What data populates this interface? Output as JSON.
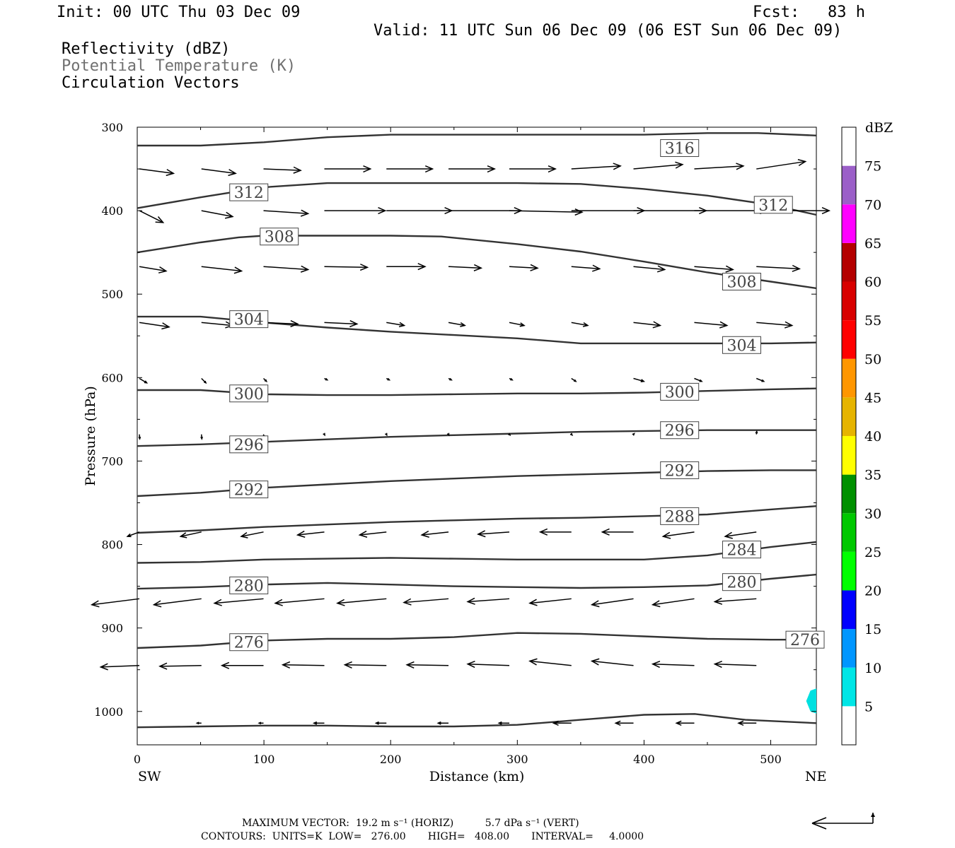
{
  "header": {
    "init": "Init: 00 UTC Thu 03 Dec 09",
    "fcst": "Fcst:   83 h",
    "valid": "Valid: 11 UTC Sun 06 Dec 09 (06 EST Sun 06 Dec 09)",
    "field1": "Reflectivity (dBZ)",
    "field2": "Potential Temperature (K)",
    "field3": "Circulation Vectors"
  },
  "footer": {
    "line1": "MAXIMUM VECTOR:  19.2 m s⁻¹ (HORIZ)          5.7 dPa s⁻¹ (VERT)",
    "line2": "CONTOURS:  UNITS=K  LOW=   276.00       HIGH=   408.00       INTERVAL=     4.0000"
  },
  "colors": {
    "contour": "#333333",
    "vector": "#000000",
    "refl_patch": "#00e0e0",
    "field2_text": "#707070"
  },
  "chart_data": {
    "type": "cross-section",
    "xlabel": "Distance (km)",
    "ylabel": "Pressure (hPa)",
    "xlim": [
      0,
      536
    ],
    "ylim": [
      1040,
      300
    ],
    "x_ticks": [
      0,
      100,
      200,
      300,
      400,
      500
    ],
    "y_ticks": [
      300,
      400,
      500,
      600,
      700,
      800,
      900,
      1000
    ],
    "left_end_label": "SW",
    "right_end_label": "NE",
    "colorbar": {
      "unit": "dBZ",
      "levels": [
        5,
        10,
        15,
        20,
        25,
        30,
        35,
        40,
        45,
        50,
        55,
        60,
        65,
        70,
        75
      ],
      "colors": [
        "#ffffff",
        "#00e6e6",
        "#0096ff",
        "#0000ff",
        "#00ff00",
        "#00c800",
        "#009000",
        "#ffff00",
        "#e6b400",
        "#ff9600",
        "#ff0000",
        "#d80000",
        "#b40000",
        "#ff00ff",
        "#9b5fc8",
        "#ffffff"
      ]
    },
    "reflectivity_patch": {
      "dbz": "5-10",
      "x": [
        528,
        536
      ],
      "p": [
        975,
        1000
      ]
    },
    "theta_contours": [
      {
        "value": 316,
        "points": [
          [
            0,
            322
          ],
          [
            50,
            322
          ],
          [
            100,
            318
          ],
          [
            150,
            312
          ],
          [
            200,
            309
          ],
          [
            250,
            309
          ],
          [
            300,
            309
          ],
          [
            350,
            309
          ],
          [
            400,
            309
          ],
          [
            450,
            307
          ],
          [
            490,
            307
          ],
          [
            536,
            310
          ]
        ]
      },
      {
        "value": 312,
        "points": [
          [
            0,
            397
          ],
          [
            50,
            384
          ],
          [
            100,
            372
          ],
          [
            150,
            367
          ],
          [
            200,
            367
          ],
          [
            250,
            367
          ],
          [
            300,
            367
          ],
          [
            350,
            368
          ],
          [
            400,
            374
          ],
          [
            450,
            382
          ],
          [
            500,
            393
          ],
          [
            536,
            405
          ]
        ]
      },
      {
        "value": 308,
        "points": [
          [
            0,
            450
          ],
          [
            50,
            438
          ],
          [
            80,
            432
          ],
          [
            100,
            430
          ],
          [
            150,
            430
          ],
          [
            200,
            430
          ],
          [
            240,
            431
          ],
          [
            300,
            440
          ],
          [
            350,
            449
          ],
          [
            400,
            461
          ],
          [
            450,
            474
          ],
          [
            500,
            485
          ],
          [
            536,
            493
          ]
        ]
      },
      {
        "value": 304,
        "points": [
          [
            0,
            527
          ],
          [
            50,
            527
          ],
          [
            100,
            534
          ],
          [
            150,
            540
          ],
          [
            200,
            545
          ],
          [
            250,
            549
          ],
          [
            300,
            553
          ],
          [
            350,
            559
          ],
          [
            400,
            559
          ],
          [
            450,
            559
          ],
          [
            500,
            559
          ],
          [
            536,
            558
          ]
        ]
      },
      {
        "value": 300,
        "points": [
          [
            0,
            615
          ],
          [
            50,
            615
          ],
          [
            100,
            620
          ],
          [
            150,
            621
          ],
          [
            200,
            621
          ],
          [
            250,
            620
          ],
          [
            300,
            619
          ],
          [
            350,
            619
          ],
          [
            400,
            618
          ],
          [
            450,
            616
          ],
          [
            500,
            614
          ],
          [
            536,
            613
          ]
        ]
      },
      {
        "value": 296,
        "points": [
          [
            0,
            682
          ],
          [
            50,
            680
          ],
          [
            100,
            677
          ],
          [
            150,
            674
          ],
          [
            200,
            671
          ],
          [
            250,
            669
          ],
          [
            300,
            667
          ],
          [
            350,
            665
          ],
          [
            400,
            664
          ],
          [
            450,
            663
          ],
          [
            500,
            663
          ],
          [
            536,
            663
          ]
        ]
      },
      {
        "value": 292,
        "points": [
          [
            0,
            742
          ],
          [
            50,
            738
          ],
          [
            100,
            732
          ],
          [
            150,
            728
          ],
          [
            200,
            724
          ],
          [
            250,
            721
          ],
          [
            300,
            718
          ],
          [
            350,
            716
          ],
          [
            400,
            714
          ],
          [
            450,
            712
          ],
          [
            500,
            711
          ],
          [
            536,
            711
          ]
        ]
      },
      {
        "value": 288,
        "points": [
          [
            0,
            786
          ],
          [
            50,
            783
          ],
          [
            100,
            779
          ],
          [
            150,
            776
          ],
          [
            200,
            773
          ],
          [
            250,
            771
          ],
          [
            300,
            769
          ],
          [
            350,
            768
          ],
          [
            400,
            766
          ],
          [
            450,
            764
          ],
          [
            500,
            758
          ],
          [
            536,
            754
          ]
        ]
      },
      {
        "value": 284,
        "points": [
          [
            0,
            822
          ],
          [
            50,
            821
          ],
          [
            100,
            818
          ],
          [
            150,
            817
          ],
          [
            200,
            816
          ],
          [
            250,
            817
          ],
          [
            300,
            818
          ],
          [
            350,
            818
          ],
          [
            400,
            818
          ],
          [
            450,
            813
          ],
          [
            500,
            803
          ],
          [
            536,
            797
          ]
        ]
      },
      {
        "value": 280,
        "points": [
          [
            0,
            853
          ],
          [
            50,
            851
          ],
          [
            100,
            848
          ],
          [
            150,
            846
          ],
          [
            200,
            848
          ],
          [
            250,
            850
          ],
          [
            300,
            851
          ],
          [
            350,
            852
          ],
          [
            400,
            851
          ],
          [
            450,
            849
          ],
          [
            500,
            841
          ],
          [
            536,
            836
          ]
        ]
      },
      {
        "value": 276,
        "points": [
          [
            0,
            924
          ],
          [
            50,
            921
          ],
          [
            100,
            915
          ],
          [
            150,
            913
          ],
          [
            200,
            913
          ],
          [
            250,
            911
          ],
          [
            300,
            906
          ],
          [
            350,
            907
          ],
          [
            400,
            910
          ],
          [
            450,
            913
          ],
          [
            500,
            914
          ],
          [
            536,
            914
          ]
        ]
      },
      {
        "value": null,
        "points": [
          [
            0,
            1019
          ],
          [
            50,
            1018
          ],
          [
            100,
            1017
          ],
          [
            150,
            1017
          ],
          [
            200,
            1018
          ],
          [
            250,
            1018
          ],
          [
            300,
            1016
          ],
          [
            350,
            1010
          ],
          [
            400,
            1004
          ],
          [
            440,
            1003
          ],
          [
            480,
            1010
          ],
          [
            536,
            1014
          ]
        ]
      }
    ],
    "contour_labels": [
      {
        "text": "316",
        "x": 413,
        "p": 325
      },
      {
        "text": "312",
        "x": 73,
        "p": 378
      },
      {
        "text": "312",
        "x": 487,
        "p": 393
      },
      {
        "text": "308",
        "x": 97,
        "p": 431
      },
      {
        "text": "308",
        "x": 462,
        "p": 485
      },
      {
        "text": "304",
        "x": 73,
        "p": 530
      },
      {
        "text": "304",
        "x": 462,
        "p": 561
      },
      {
        "text": "300",
        "x": 73,
        "p": 619
      },
      {
        "text": "300",
        "x": 413,
        "p": 617
      },
      {
        "text": "296",
        "x": 73,
        "p": 680
      },
      {
        "text": "296",
        "x": 413,
        "p": 663
      },
      {
        "text": "292",
        "x": 73,
        "p": 734
      },
      {
        "text": "292",
        "x": 413,
        "p": 711
      },
      {
        "text": "288",
        "x": 413,
        "p": 766
      },
      {
        "text": "284",
        "x": 462,
        "p": 806
      },
      {
        "text": "280",
        "x": 73,
        "p": 849
      },
      {
        "text": "280",
        "x": 462,
        "p": 845
      },
      {
        "text": "276",
        "x": 73,
        "p": 917
      },
      {
        "text": "276",
        "x": 512,
        "p": 914
      }
    ],
    "vector_columns_x": [
      0,
      49,
      98,
      146,
      195,
      244,
      292,
      341,
      390,
      438,
      487
    ],
    "vector_rows": [
      {
        "p": 350,
        "u": [
          4.6,
          4.6,
          5.0,
          6.2,
          6.2,
          6.2,
          6.2,
          6.6,
          6.6,
          6.6,
          6.6
        ],
        "v": [
          -0.6,
          -0.6,
          -0.2,
          0,
          0,
          0,
          0,
          0.4,
          0.6,
          0.4,
          1.0
        ]
      },
      {
        "p": 400,
        "u": [
          3.2,
          4.2,
          6.0,
          8.2,
          8.8,
          9.8,
          9.8,
          9.8,
          9.8,
          9.8,
          9.8
        ],
        "v": [
          -1.6,
          -0.8,
          -0.4,
          0,
          0,
          0,
          -0.2,
          0,
          0,
          0,
          0
        ]
      },
      {
        "p": 467,
        "u": [
          3.6,
          5.4,
          6.0,
          5.8,
          5.2,
          4.4,
          3.8,
          3.8,
          4.2,
          5.2,
          5.8
        ],
        "v": [
          -0.6,
          -0.6,
          -0.4,
          -0.1,
          0,
          -0.2,
          -0.2,
          -0.3,
          -0.4,
          -0.4,
          -0.3
        ]
      },
      {
        "p": 534,
        "u": [
          4.0,
          4.2,
          4.6,
          4.4,
          2.4,
          2.2,
          2.0,
          2.2,
          3.6,
          4.4,
          4.8
        ],
        "v": [
          -0.6,
          -0.4,
          -0.2,
          -0.2,
          -0.4,
          -0.4,
          -0.4,
          -0.4,
          -0.4,
          -0.4,
          -0.4
        ]
      },
      {
        "p": 601,
        "u": [
          1.0,
          0.6,
          0.4,
          0.4,
          0.4,
          0.4,
          0.4,
          0.6,
          1.4,
          1.0,
          1.0
        ],
        "v": [
          -0.6,
          -0.6,
          -0.4,
          -0.2,
          -0.2,
          -0.2,
          -0.2,
          -0.4,
          -0.4,
          -0.4,
          -0.4
        ]
      },
      {
        "p": 668,
        "u": [
          0.05,
          0.05,
          0.05,
          0.05,
          0.05,
          0.05,
          0.1,
          0.1,
          0.1,
          0.1,
          0.05
        ],
        "v": [
          -0.6,
          -0.6,
          -0.4,
          -0.1,
          -0.1,
          -0.1,
          -0.1,
          -0.1,
          0.1,
          0.2,
          0.4
        ]
      },
      {
        "p": 785,
        "u": [
          -1.6,
          -2.8,
          -3.0,
          -3.6,
          -3.6,
          -3.6,
          -4.2,
          -4.2,
          -4.2,
          -4.2,
          -4.2
        ],
        "v": [
          -0.6,
          -0.6,
          -0.6,
          -0.4,
          -0.4,
          -0.4,
          -0.3,
          0,
          0,
          -0.6,
          -0.6
        ]
      },
      {
        "p": 865,
        "u": [
          -6.4,
          -6.4,
          -6.6,
          -6.6,
          -6.6,
          -6.0,
          -5.6,
          -5.6,
          -5.6,
          -5.6,
          -5.6
        ],
        "v": [
          -0.8,
          -0.8,
          -0.6,
          -0.6,
          -0.6,
          -0.5,
          -0.4,
          -0.6,
          -0.8,
          -0.8,
          -0.4
        ]
      },
      {
        "p": 945,
        "u": [
          -5.2,
          -5.6,
          -5.6,
          -5.6,
          -5.6,
          -5.6,
          -5.6,
          -5.6,
          -5.6,
          -5.6,
          -5.6
        ],
        "v": [
          -0.2,
          -0.1,
          0,
          0.1,
          0.1,
          0.1,
          0.2,
          0.6,
          0.6,
          0.2,
          0.2
        ]
      },
      {
        "p": 1014,
        "u": [
          0,
          -0.6,
          -0.6,
          -1.4,
          -1.4,
          -1.4,
          -1.4,
          -2.4,
          -2.4,
          -2.4,
          -2.4
        ],
        "v": [
          0,
          0,
          0,
          0,
          0,
          0,
          0,
          0,
          0,
          0,
          0
        ]
      }
    ]
  }
}
